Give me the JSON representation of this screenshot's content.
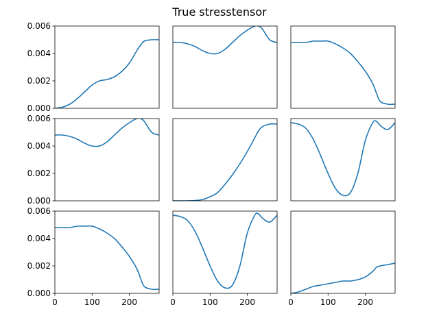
{
  "title": "True stresstensor",
  "chart_data": {
    "type": "line",
    "layout": "3x3 grid, shared axes",
    "title": "True stresstensor",
    "xlim": [
      0,
      280
    ],
    "ylim": [
      0,
      0.006
    ],
    "xticks": [
      0,
      100,
      200
    ],
    "xtick_labels": [
      "0",
      "100",
      "200"
    ],
    "yticks": [
      0,
      0.002,
      0.004,
      0.006
    ],
    "ytick_labels": [
      "0.000",
      "0.002",
      "0.004",
      "0.006"
    ],
    "line_color": "#1f77b4",
    "grid": false,
    "x": [
      0,
      20,
      40,
      60,
      80,
      100,
      120,
      140,
      160,
      180,
      200,
      220,
      230,
      240,
      260,
      280
    ],
    "panels": [
      {
        "row": 0,
        "col": 0,
        "y": [
          0.0,
          8e-05,
          0.0003,
          0.0007,
          0.0012,
          0.0017,
          0.002,
          0.0021,
          0.0023,
          0.0027,
          0.0033,
          0.0042,
          0.0046,
          0.0049,
          0.005,
          0.005
        ]
      },
      {
        "row": 0,
        "col": 1,
        "y": [
          0.0048,
          0.0048,
          0.0047,
          0.0045,
          0.0042,
          0.004,
          0.004,
          0.0043,
          0.0048,
          0.0053,
          0.0057,
          0.006,
          0.006,
          0.0058,
          0.005,
          0.0048
        ]
      },
      {
        "row": 0,
        "col": 2,
        "y": [
          0.0048,
          0.0048,
          0.0048,
          0.0049,
          0.0049,
          0.0049,
          0.0047,
          0.0044,
          0.004,
          0.0034,
          0.0027,
          0.0018,
          0.0011,
          0.0005,
          0.0003,
          0.0003
        ]
      },
      {
        "row": 1,
        "col": 0,
        "y": [
          0.0048,
          0.0048,
          0.0047,
          0.0045,
          0.0042,
          0.004,
          0.004,
          0.0043,
          0.0048,
          0.0053,
          0.0057,
          0.006,
          0.006,
          0.0058,
          0.005,
          0.0048
        ]
      },
      {
        "row": 1,
        "col": 1,
        "y": [
          0.0,
          0.0,
          0.0,
          2e-05,
          0.0001,
          0.0003,
          0.0006,
          0.0012,
          0.0019,
          0.0027,
          0.0036,
          0.0046,
          0.0051,
          0.0054,
          0.0056,
          0.0056
        ]
      },
      {
        "row": 1,
        "col": 2,
        "y": [
          0.0057,
          0.0056,
          0.0053,
          0.0045,
          0.0033,
          0.002,
          0.0009,
          0.0004,
          0.0006,
          0.002,
          0.0044,
          0.0057,
          0.0058,
          0.0055,
          0.0052,
          0.0057
        ]
      },
      {
        "row": 2,
        "col": 0,
        "y": [
          0.0048,
          0.0048,
          0.0048,
          0.0049,
          0.0049,
          0.0049,
          0.0047,
          0.0044,
          0.004,
          0.0034,
          0.0027,
          0.0018,
          0.0011,
          0.0005,
          0.0003,
          0.0003
        ]
      },
      {
        "row": 2,
        "col": 1,
        "y": [
          0.0057,
          0.0056,
          0.0053,
          0.0045,
          0.0033,
          0.002,
          0.0009,
          0.0004,
          0.0006,
          0.002,
          0.0044,
          0.0057,
          0.0058,
          0.0055,
          0.0052,
          0.0057
        ]
      },
      {
        "row": 2,
        "col": 2,
        "y": [
          0.0,
          0.0001,
          0.0003,
          0.0005,
          0.0006,
          0.0007,
          0.0008,
          0.0009,
          0.0009,
          0.001,
          0.0012,
          0.0016,
          0.0019,
          0.002,
          0.0021,
          0.0022
        ]
      }
    ]
  }
}
